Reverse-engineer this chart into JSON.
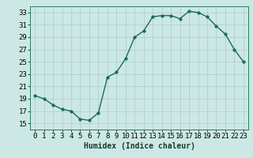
{
  "x": [
    0,
    1,
    2,
    3,
    4,
    5,
    6,
    7,
    8,
    9,
    10,
    11,
    12,
    13,
    14,
    15,
    16,
    17,
    18,
    19,
    20,
    21,
    22,
    23
  ],
  "y": [
    19.5,
    19.0,
    18.0,
    17.3,
    17.0,
    15.7,
    15.5,
    16.7,
    22.5,
    23.3,
    25.5,
    29.0,
    30.0,
    32.3,
    32.5,
    32.5,
    32.0,
    33.2,
    33.0,
    32.3,
    30.8,
    29.5,
    27.0,
    25.0
  ],
  "line_color": "#1a6b5a",
  "marker_color": "#1a6b5a",
  "bg_color": "#cce8e4",
  "grid_color": "#aaccca",
  "xlabel": "Humidex (Indice chaleur)",
  "ylim": [
    14,
    34
  ],
  "xlim": [
    -0.5,
    23.5
  ],
  "yticks": [
    15,
    17,
    19,
    21,
    23,
    25,
    27,
    29,
    31,
    33
  ],
  "xticks": [
    0,
    1,
    2,
    3,
    4,
    5,
    6,
    7,
    8,
    9,
    10,
    11,
    12,
    13,
    14,
    15,
    16,
    17,
    18,
    19,
    20,
    21,
    22,
    23
  ],
  "xlabel_fontsize": 7,
  "tick_fontsize": 6.5,
  "marker_size": 2.5,
  "line_width": 1.0
}
